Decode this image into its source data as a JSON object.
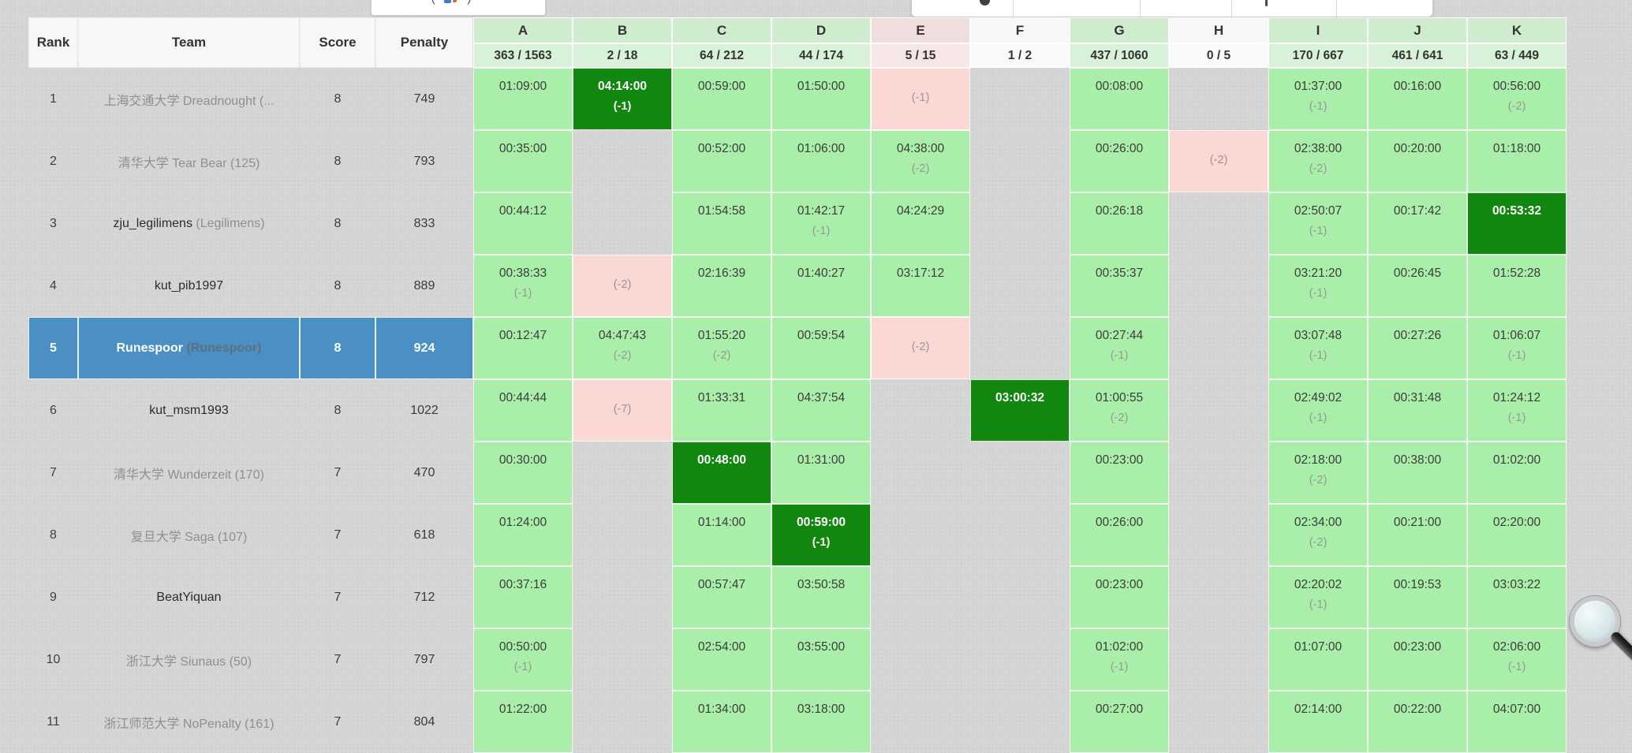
{
  "colors": {
    "page_bg": "#d5d5d5",
    "solved": "#a9efa9",
    "first_solve": "#11870f",
    "failed": "#fbd8d4",
    "highlight_row": "#4b90c4",
    "header_solved": "#cfeccf",
    "header_solved_stats": "#d8f1d8",
    "header_failed": "#f0dddd",
    "header_failed_stats": "#f6e7e6",
    "header_neutral": "#f7f7f7",
    "header_neutral_stats": "#fafafa"
  },
  "top_controls": {
    "left_label": "( )"
  },
  "columns": {
    "rank": "Rank",
    "team": "Team",
    "score": "Score",
    "penalty": "Penalty"
  },
  "problems": [
    {
      "letter": "A",
      "stats": "363 / 1563",
      "state": "ok"
    },
    {
      "letter": "B",
      "stats": "2 / 18",
      "state": "ok"
    },
    {
      "letter": "C",
      "stats": "64 / 212",
      "state": "ok"
    },
    {
      "letter": "D",
      "stats": "44 / 174",
      "state": "ok"
    },
    {
      "letter": "E",
      "stats": "5 / 15",
      "state": "bad"
    },
    {
      "letter": "F",
      "stats": "1 / 2",
      "state": "none"
    },
    {
      "letter": "G",
      "stats": "437 / 1060",
      "state": "ok"
    },
    {
      "letter": "H",
      "stats": "0 / 5",
      "state": "none"
    },
    {
      "letter": "I",
      "stats": "170 / 667",
      "state": "ok"
    },
    {
      "letter": "J",
      "stats": "461 / 641",
      "state": "ok"
    },
    {
      "letter": "K",
      "stats": "63 / 449",
      "state": "ok"
    }
  ],
  "rows": [
    {
      "rank": "1",
      "score": "8",
      "penalty": "749",
      "highlight": false,
      "team": {
        "name": "上海交通大学 Dreadnought (...",
        "tone": "muted",
        "suffix": ""
      },
      "cells": [
        {
          "s": "ok",
          "t": "01:09:00",
          "x": ""
        },
        {
          "s": "first",
          "t": "04:14:00",
          "x": "(-1)"
        },
        {
          "s": "ok",
          "t": "00:59:00",
          "x": ""
        },
        {
          "s": "ok",
          "t": "01:50:00",
          "x": ""
        },
        {
          "s": "bad",
          "t": "",
          "x": "(-1)"
        },
        null,
        {
          "s": "ok",
          "t": "00:08:00",
          "x": ""
        },
        null,
        {
          "s": "ok",
          "t": "01:37:00",
          "x": "(-1)"
        },
        {
          "s": "ok",
          "t": "00:16:00",
          "x": ""
        },
        {
          "s": "ok",
          "t": "00:56:00",
          "x": "(-2)"
        }
      ]
    },
    {
      "rank": "2",
      "score": "8",
      "penalty": "793",
      "highlight": false,
      "team": {
        "name": "清华大学 Tear Bear (125)",
        "tone": "muted",
        "suffix": ""
      },
      "cells": [
        {
          "s": "ok",
          "t": "00:35:00",
          "x": ""
        },
        null,
        {
          "s": "ok",
          "t": "00:52:00",
          "x": ""
        },
        {
          "s": "ok",
          "t": "01:06:00",
          "x": ""
        },
        {
          "s": "ok",
          "t": "04:38:00",
          "x": "(-2)"
        },
        null,
        {
          "s": "ok",
          "t": "00:26:00",
          "x": ""
        },
        {
          "s": "bad",
          "t": "",
          "x": "(-2)"
        },
        {
          "s": "ok",
          "t": "02:38:00",
          "x": "(-2)"
        },
        {
          "s": "ok",
          "t": "00:20:00",
          "x": ""
        },
        {
          "s": "ok",
          "t": "01:18:00",
          "x": ""
        }
      ]
    },
    {
      "rank": "3",
      "score": "8",
      "penalty": "833",
      "highlight": false,
      "team": {
        "name": "zju_legilimens",
        "tone": "dark",
        "suffix": " (Legilimens)"
      },
      "cells": [
        {
          "s": "ok",
          "t": "00:44:12",
          "x": ""
        },
        null,
        {
          "s": "ok",
          "t": "01:54:58",
          "x": ""
        },
        {
          "s": "ok",
          "t": "01:42:17",
          "x": "(-1)"
        },
        {
          "s": "ok",
          "t": "04:24:29",
          "x": ""
        },
        null,
        {
          "s": "ok",
          "t": "00:26:18",
          "x": ""
        },
        null,
        {
          "s": "ok",
          "t": "02:50:07",
          "x": "(-1)"
        },
        {
          "s": "ok",
          "t": "00:17:42",
          "x": ""
        },
        {
          "s": "first",
          "t": "00:53:32",
          "x": ""
        }
      ]
    },
    {
      "rank": "4",
      "score": "8",
      "penalty": "889",
      "highlight": false,
      "team": {
        "name": "kut_pib1997",
        "tone": "dark",
        "suffix": ""
      },
      "cells": [
        {
          "s": "ok",
          "t": "00:38:33",
          "x": "(-1)"
        },
        {
          "s": "bad",
          "t": "",
          "x": "(-2)"
        },
        {
          "s": "ok",
          "t": "02:16:39",
          "x": ""
        },
        {
          "s": "ok",
          "t": "01:40:27",
          "x": ""
        },
        {
          "s": "ok",
          "t": "03:17:12",
          "x": ""
        },
        null,
        {
          "s": "ok",
          "t": "00:35:37",
          "x": ""
        },
        null,
        {
          "s": "ok",
          "t": "03:21:20",
          "x": "(-1)"
        },
        {
          "s": "ok",
          "t": "00:26:45",
          "x": ""
        },
        {
          "s": "ok",
          "t": "01:52:28",
          "x": ""
        }
      ]
    },
    {
      "rank": "5",
      "score": "8",
      "penalty": "924",
      "highlight": true,
      "team": {
        "name": "Runespoor",
        "tone": "white",
        "suffix": " (Runespoor)"
      },
      "cells": [
        {
          "s": "ok",
          "t": "00:12:47",
          "x": ""
        },
        {
          "s": "ok",
          "t": "04:47:43",
          "x": "(-2)"
        },
        {
          "s": "ok",
          "t": "01:55:20",
          "x": "(-2)"
        },
        {
          "s": "ok",
          "t": "00:59:54",
          "x": ""
        },
        {
          "s": "bad",
          "t": "",
          "x": "(-2)"
        },
        null,
        {
          "s": "ok",
          "t": "00:27:44",
          "x": "(-1)"
        },
        null,
        {
          "s": "ok",
          "t": "03:07:48",
          "x": "(-1)"
        },
        {
          "s": "ok",
          "t": "00:27:26",
          "x": ""
        },
        {
          "s": "ok",
          "t": "01:06:07",
          "x": "(-1)"
        }
      ]
    },
    {
      "rank": "6",
      "score": "8",
      "penalty": "1022",
      "highlight": false,
      "team": {
        "name": "kut_msm1993",
        "tone": "dark",
        "suffix": ""
      },
      "cells": [
        {
          "s": "ok",
          "t": "00:44:44",
          "x": ""
        },
        {
          "s": "bad",
          "t": "",
          "x": "(-7)"
        },
        {
          "s": "ok",
          "t": "01:33:31",
          "x": ""
        },
        {
          "s": "ok",
          "t": "04:37:54",
          "x": ""
        },
        null,
        {
          "s": "first",
          "t": "03:00:32",
          "x": ""
        },
        {
          "s": "ok",
          "t": "01:00:55",
          "x": "(-2)"
        },
        null,
        {
          "s": "ok",
          "t": "02:49:02",
          "x": "(-1)"
        },
        {
          "s": "ok",
          "t": "00:31:48",
          "x": ""
        },
        {
          "s": "ok",
          "t": "01:24:12",
          "x": "(-1)"
        }
      ]
    },
    {
      "rank": "7",
      "score": "7",
      "penalty": "470",
      "highlight": false,
      "team": {
        "name": "清华大学 Wunderzeit (170)",
        "tone": "muted",
        "suffix": ""
      },
      "cells": [
        {
          "s": "ok",
          "t": "00:30:00",
          "x": ""
        },
        null,
        {
          "s": "first",
          "t": "00:48:00",
          "x": ""
        },
        {
          "s": "ok",
          "t": "01:31:00",
          "x": ""
        },
        null,
        null,
        {
          "s": "ok",
          "t": "00:23:00",
          "x": ""
        },
        null,
        {
          "s": "ok",
          "t": "02:18:00",
          "x": "(-2)"
        },
        {
          "s": "ok",
          "t": "00:38:00",
          "x": ""
        },
        {
          "s": "ok",
          "t": "01:02:00",
          "x": ""
        }
      ]
    },
    {
      "rank": "8",
      "score": "7",
      "penalty": "618",
      "highlight": false,
      "team": {
        "name": "复旦大学 Saga (107)",
        "tone": "muted",
        "suffix": ""
      },
      "cells": [
        {
          "s": "ok",
          "t": "01:24:00",
          "x": ""
        },
        null,
        {
          "s": "ok",
          "t": "01:14:00",
          "x": ""
        },
        {
          "s": "first",
          "t": "00:59:00",
          "x": "(-1)"
        },
        null,
        null,
        {
          "s": "ok",
          "t": "00:26:00",
          "x": ""
        },
        null,
        {
          "s": "ok",
          "t": "02:34:00",
          "x": "(-2)"
        },
        {
          "s": "ok",
          "t": "00:21:00",
          "x": ""
        },
        {
          "s": "ok",
          "t": "02:20:00",
          "x": ""
        }
      ]
    },
    {
      "rank": "9",
      "score": "7",
      "penalty": "712",
      "highlight": false,
      "team": {
        "name": "BeatYiquan",
        "tone": "dark",
        "suffix": ""
      },
      "cells": [
        {
          "s": "ok",
          "t": "00:37:16",
          "x": ""
        },
        null,
        {
          "s": "ok",
          "t": "00:57:47",
          "x": ""
        },
        {
          "s": "ok",
          "t": "03:50:58",
          "x": ""
        },
        null,
        null,
        {
          "s": "ok",
          "t": "00:23:00",
          "x": ""
        },
        null,
        {
          "s": "ok",
          "t": "02:20:02",
          "x": "(-1)"
        },
        {
          "s": "ok",
          "t": "00:19:53",
          "x": ""
        },
        {
          "s": "ok",
          "t": "03:03:22",
          "x": ""
        }
      ]
    },
    {
      "rank": "10",
      "score": "7",
      "penalty": "797",
      "highlight": false,
      "team": {
        "name": "浙江大学 Siunaus (50)",
        "tone": "muted",
        "suffix": ""
      },
      "cells": [
        {
          "s": "ok",
          "t": "00:50:00",
          "x": "(-1)"
        },
        null,
        {
          "s": "ok",
          "t": "02:54:00",
          "x": ""
        },
        {
          "s": "ok",
          "t": "03:55:00",
          "x": ""
        },
        null,
        null,
        {
          "s": "ok",
          "t": "01:02:00",
          "x": "(-1)"
        },
        null,
        {
          "s": "ok",
          "t": "01:07:00",
          "x": ""
        },
        {
          "s": "ok",
          "t": "00:23:00",
          "x": ""
        },
        {
          "s": "ok",
          "t": "02:06:00",
          "x": "(-1)"
        }
      ]
    },
    {
      "rank": "11",
      "score": "7",
      "penalty": "804",
      "highlight": false,
      "team": {
        "name": "浙江师范大学 NoPenalty (161)",
        "tone": "muted",
        "suffix": ""
      },
      "cells": [
        {
          "s": "ok",
          "t": "01:22:00",
          "x": ""
        },
        null,
        {
          "s": "ok",
          "t": "01:34:00",
          "x": ""
        },
        {
          "s": "ok",
          "t": "03:18:00",
          "x": ""
        },
        null,
        null,
        {
          "s": "ok",
          "t": "00:27:00",
          "x": ""
        },
        null,
        {
          "s": "ok",
          "t": "02:14:00",
          "x": ""
        },
        {
          "s": "ok",
          "t": "00:22:00",
          "x": ""
        },
        {
          "s": "ok",
          "t": "04:07:00",
          "x": ""
        }
      ]
    }
  ]
}
